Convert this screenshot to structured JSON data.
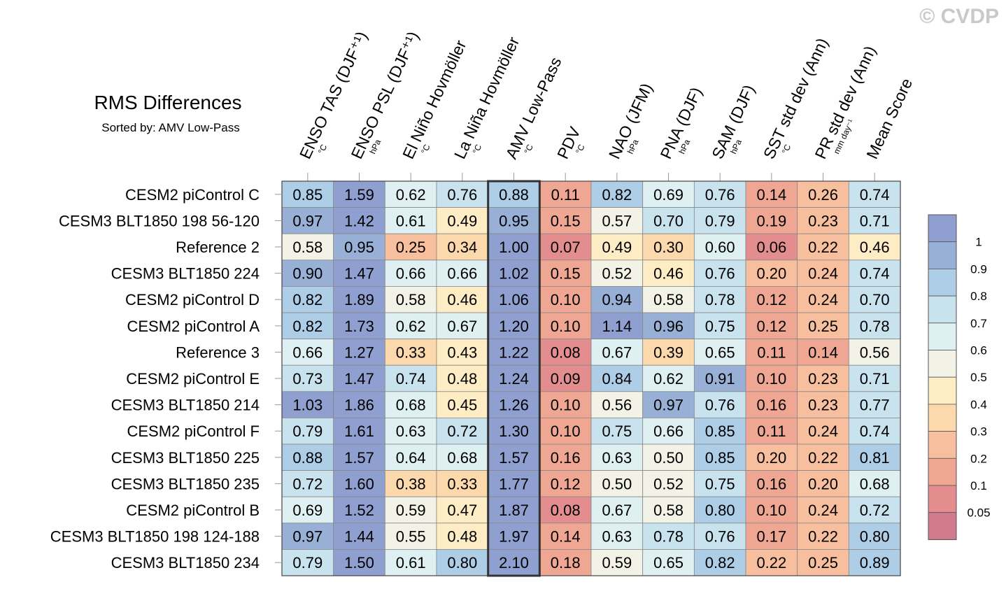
{
  "watermark": "© CVDP",
  "chart_data": {
    "type": "heatmap",
    "title": "RMS Differences",
    "subtitle": "Sorted by: AMV Low-Pass",
    "highlight_column": "AMV Low-Pass",
    "columns": [
      {
        "label": "ENSO TAS (DJF⁺¹)",
        "unit": "°C"
      },
      {
        "label": "ENSO PSL (DJF⁺¹)",
        "unit": "hPa"
      },
      {
        "label": "El Niño Hovmöller",
        "unit": "°C"
      },
      {
        "label": "La Niña Hovmöller",
        "unit": "°C"
      },
      {
        "label": "AMV Low-Pass",
        "unit": "°C"
      },
      {
        "label": "PDV",
        "unit": "°C"
      },
      {
        "label": "NAO (JFM)",
        "unit": "hPa"
      },
      {
        "label": "PNA (DJF)",
        "unit": "hPa"
      },
      {
        "label": "SAM (DJF)",
        "unit": "hPa"
      },
      {
        "label": "SST std dev (Ann)",
        "unit": "°C"
      },
      {
        "label": "PR std dev (Ann)",
        "unit": "mm day⁻¹"
      },
      {
        "label": "Mean Score",
        "unit": ""
      }
    ],
    "rows": [
      {
        "label": "CESM2 piControl C",
        "values": [
          0.85,
          1.59,
          0.62,
          0.76,
          0.88,
          0.11,
          0.82,
          0.69,
          0.76,
          0.14,
          0.26,
          0.74
        ]
      },
      {
        "label": "CESM3 BLT1850 198 56-120",
        "values": [
          0.97,
          1.42,
          0.61,
          0.49,
          0.95,
          0.15,
          0.57,
          0.7,
          0.79,
          0.19,
          0.23,
          0.71
        ]
      },
      {
        "label": "Reference 2",
        "values": [
          0.58,
          0.95,
          0.25,
          0.34,
          1.0,
          0.07,
          0.49,
          0.3,
          0.6,
          0.06,
          0.22,
          0.46
        ]
      },
      {
        "label": "CESM3 BLT1850 224",
        "values": [
          0.9,
          1.47,
          0.66,
          0.66,
          1.02,
          0.15,
          0.52,
          0.46,
          0.76,
          0.2,
          0.24,
          0.74
        ]
      },
      {
        "label": "CESM2 piControl D",
        "values": [
          0.82,
          1.89,
          0.58,
          0.46,
          1.06,
          0.1,
          0.94,
          0.58,
          0.78,
          0.12,
          0.24,
          0.7
        ]
      },
      {
        "label": "CESM2 piControl A",
        "values": [
          0.82,
          1.73,
          0.62,
          0.67,
          1.2,
          0.1,
          1.14,
          0.96,
          0.75,
          0.12,
          0.25,
          0.78
        ]
      },
      {
        "label": "Reference 3",
        "values": [
          0.66,
          1.27,
          0.33,
          0.43,
          1.22,
          0.08,
          0.67,
          0.39,
          0.65,
          0.11,
          0.14,
          0.56
        ]
      },
      {
        "label": "CESM2 piControl E",
        "values": [
          0.73,
          1.47,
          0.74,
          0.48,
          1.24,
          0.09,
          0.84,
          0.62,
          0.91,
          0.1,
          0.23,
          0.71
        ]
      },
      {
        "label": "CESM3 BLT1850 214",
        "values": [
          1.03,
          1.86,
          0.68,
          0.45,
          1.26,
          0.1,
          0.56,
          0.97,
          0.76,
          0.16,
          0.23,
          0.77
        ]
      },
      {
        "label": "CESM2 piControl F",
        "values": [
          0.79,
          1.61,
          0.63,
          0.72,
          1.3,
          0.1,
          0.75,
          0.66,
          0.85,
          0.11,
          0.24,
          0.74
        ]
      },
      {
        "label": "CESM3 BLT1850 225",
        "values": [
          0.88,
          1.57,
          0.64,
          0.68,
          1.57,
          0.16,
          0.63,
          0.5,
          0.85,
          0.2,
          0.22,
          0.81
        ]
      },
      {
        "label": "CESM3 BLT1850 235",
        "values": [
          0.72,
          1.6,
          0.38,
          0.33,
          1.77,
          0.12,
          0.5,
          0.52,
          0.75,
          0.16,
          0.2,
          0.68
        ]
      },
      {
        "label": "CESM2 piControl B",
        "values": [
          0.69,
          1.52,
          0.59,
          0.47,
          1.87,
          0.08,
          0.67,
          0.58,
          0.8,
          0.1,
          0.24,
          0.72
        ]
      },
      {
        "label": "CESM3 BLT1850 198 124-188",
        "values": [
          0.97,
          1.44,
          0.55,
          0.48,
          1.97,
          0.14,
          0.63,
          0.78,
          0.76,
          0.17,
          0.22,
          0.8
        ]
      },
      {
        "label": "CESM3 BLT1850 234",
        "values": [
          0.79,
          1.5,
          0.61,
          0.8,
          2.1,
          0.18,
          0.59,
          0.65,
          0.82,
          0.22,
          0.25,
          0.89
        ]
      }
    ],
    "colorbar": {
      "levels": [
        0.05,
        0.1,
        0.2,
        0.3,
        0.4,
        0.5,
        0.6,
        0.7,
        0.8,
        0.9,
        1
      ],
      "tick_labels": [
        "1",
        "0.9",
        "0.8",
        "0.7",
        "0.6",
        "0.5",
        "0.4",
        "0.3",
        "0.2",
        "0.1",
        "0.05"
      ],
      "colors": [
        "#d17b8c",
        "#e38d8f",
        "#efa793",
        "#f7bf9e",
        "#fcd8ad",
        "#fdecc4",
        "#f3f2e6",
        "#dff0f3",
        "#c8e2ee",
        "#aecde6",
        "#98afd6",
        "#8fa0d0"
      ]
    }
  }
}
